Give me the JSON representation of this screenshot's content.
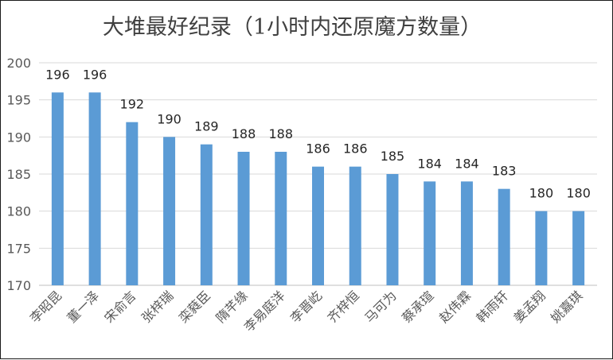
{
  "chart_data": {
    "type": "bar",
    "title": "大堆最好纪录（1小时内还原魔方数量）",
    "xlabel": "",
    "ylabel": "",
    "ylim": [
      170,
      200
    ],
    "yticks": [
      170,
      175,
      180,
      185,
      190,
      195,
      200
    ],
    "grid": true,
    "legend": "none",
    "bar_color": "#5b9bd5",
    "categories": [
      "李昭昆",
      "董一泽",
      "宋俞言",
      "张梓瑞",
      "栾蕤臣",
      "隋芊缘",
      "李易庭洋",
      "李晋屹",
      "齐梓恒",
      "马可为",
      "蔡承瑄",
      "赵伟霖",
      "韩雨轩",
      "姜孟翔",
      "姚嘉琪"
    ],
    "values": [
      196,
      196,
      192,
      190,
      189,
      188,
      188,
      186,
      186,
      185,
      184,
      184,
      183,
      180,
      180
    ]
  }
}
